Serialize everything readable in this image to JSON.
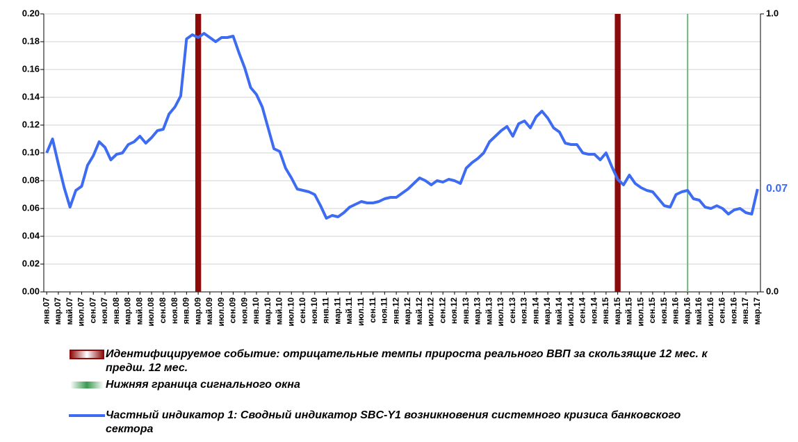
{
  "chart_data": {
    "type": "line",
    "categories": [
      "янв.07",
      null,
      "мар.07",
      null,
      "май.07",
      null,
      "июл.07",
      null,
      "сен.07",
      null,
      "ноя.07",
      null,
      "янв.08",
      null,
      "мар.08",
      null,
      "май.08",
      null,
      "июл.08",
      null,
      "сен.08",
      null,
      "ноя.08",
      null,
      "янв.09",
      null,
      "мар.09",
      null,
      "май.09",
      null,
      "июл.09",
      null,
      "сен.09",
      null,
      "ноя.09",
      null,
      "янв.10",
      null,
      "мар.10",
      null,
      "май.10",
      null,
      "июл.10",
      null,
      "сен.10",
      null,
      "ноя.10",
      null,
      "янв.11",
      null,
      "мар.11",
      null,
      "май.11",
      null,
      "июл.11",
      null,
      "сен.11",
      null,
      "ноя.11",
      null,
      "янв.12",
      null,
      "мар.12",
      null,
      "май.12",
      null,
      "июл.12",
      null,
      "сен.12",
      null,
      "ноя.12",
      null,
      "янв.13",
      null,
      "мар.13",
      null,
      "май.13",
      null,
      "июл.13",
      null,
      "сен.13",
      null,
      "ноя.13",
      null,
      "янв.14",
      null,
      "мар.14",
      null,
      "май.14",
      null,
      "июл.14",
      null,
      "сен.14",
      null,
      "ноя.14",
      null,
      "янв.15",
      null,
      "мар.15",
      null,
      "май.15",
      null,
      "июл.15",
      null,
      "сен.15",
      null,
      "ноя.15",
      null,
      "янв.16",
      null,
      "мар.16",
      null,
      "май.16",
      null,
      "июл.16",
      null,
      "сен.16",
      null,
      "ноя.16",
      null,
      "янв.17",
      null,
      "мар.17"
    ],
    "ylim": [
      0,
      0.2
    ],
    "yticks": [
      {
        "value": 0,
        "label": "0.00"
      },
      0.02,
      0.04,
      0.06,
      0.08,
      {
        "value": 0.1,
        "label": "0.10"
      },
      0.12,
      0.14,
      0.16,
      0.18,
      {
        "value": 0.2,
        "label": "0.20"
      }
    ],
    "y2lim": [
      0,
      1
    ],
    "y2ticks": [
      {
        "value": 0,
        "label": "0.0"
      },
      {
        "value": 1,
        "label": "1.0"
      }
    ],
    "series": [
      {
        "name": "Идентифицируемое событие: отрицательные темпы прироста реального ВВП за скользящие 12 мес. к предш. 12 мес.",
        "type": "bar",
        "axis": "y2",
        "color": "#8b0a0a",
        "values": [
          null,
          null,
          null,
          null,
          null,
          null,
          null,
          null,
          null,
          null,
          null,
          null,
          null,
          null,
          null,
          null,
          null,
          null,
          null,
          null,
          null,
          null,
          null,
          null,
          null,
          null,
          1,
          null,
          null,
          null,
          null,
          null,
          null,
          null,
          null,
          null,
          null,
          null,
          null,
          null,
          null,
          null,
          null,
          null,
          null,
          null,
          null,
          null,
          null,
          null,
          null,
          null,
          null,
          null,
          null,
          null,
          null,
          null,
          null,
          null,
          null,
          null,
          null,
          null,
          null,
          null,
          null,
          null,
          null,
          null,
          null,
          null,
          null,
          null,
          null,
          null,
          null,
          null,
          null,
          null,
          null,
          null,
          null,
          null,
          null,
          null,
          null,
          null,
          null,
          null,
          null,
          null,
          null,
          null,
          null,
          null,
          null,
          null,
          1,
          null,
          null,
          null,
          null,
          null,
          null,
          null,
          null,
          null,
          null,
          null,
          null,
          null,
          null,
          null,
          null,
          null,
          null,
          null,
          null,
          null,
          null,
          null,
          null
        ]
      },
      {
        "name": "Нижняя граница сигнального окна",
        "type": "bar",
        "axis": "y2",
        "color": "#6db37a",
        "values": [
          null,
          null,
          null,
          null,
          null,
          null,
          null,
          null,
          null,
          null,
          null,
          null,
          null,
          null,
          null,
          null,
          null,
          null,
          null,
          null,
          null,
          null,
          null,
          null,
          null,
          null,
          null,
          null,
          null,
          null,
          null,
          null,
          null,
          null,
          null,
          null,
          null,
          null,
          null,
          null,
          null,
          null,
          null,
          null,
          null,
          null,
          null,
          null,
          null,
          null,
          null,
          null,
          null,
          null,
          null,
          null,
          null,
          null,
          null,
          null,
          null,
          null,
          null,
          null,
          null,
          null,
          null,
          null,
          null,
          null,
          null,
          null,
          null,
          null,
          null,
          null,
          null,
          null,
          null,
          null,
          null,
          null,
          null,
          null,
          null,
          null,
          null,
          null,
          null,
          null,
          null,
          null,
          null,
          null,
          null,
          null,
          null,
          null,
          null,
          null,
          null,
          null,
          null,
          null,
          null,
          null,
          null,
          null,
          null,
          null,
          1,
          null,
          null,
          null,
          null,
          null,
          null,
          null,
          null,
          null,
          null,
          null,
          null
        ]
      },
      {
        "name": "Частный индикатор 1: Сводный индикатор SBC-Y1 возникновения системного кризиса банковского сектора",
        "type": "line",
        "color": "#3d6cf2",
        "values": [
          0.1,
          0.11,
          0.092,
          0.075,
          0.061,
          0.073,
          0.076,
          0.091,
          0.098,
          0.108,
          0.104,
          0.095,
          0.099,
          0.1,
          0.106,
          0.108,
          0.112,
          0.107,
          0.111,
          0.116,
          0.117,
          0.128,
          0.133,
          0.141,
          0.182,
          0.185,
          0.183,
          0.186,
          0.183,
          0.18,
          0.183,
          0.183,
          0.184,
          0.172,
          0.161,
          0.147,
          0.142,
          0.133,
          0.118,
          0.103,
          0.101,
          0.089,
          0.082,
          0.074,
          0.073,
          0.072,
          0.07,
          0.062,
          0.053,
          0.055,
          0.054,
          0.057,
          0.061,
          0.063,
          0.065,
          0.064,
          0.064,
          0.065,
          0.067,
          0.068,
          0.068,
          0.071,
          0.074,
          0.078,
          0.082,
          0.08,
          0.077,
          0.08,
          0.079,
          0.081,
          0.08,
          0.078,
          0.089,
          0.093,
          0.096,
          0.1,
          0.108,
          0.112,
          0.116,
          0.119,
          0.112,
          0.121,
          0.123,
          0.118,
          0.126,
          0.13,
          0.125,
          0.118,
          0.115,
          0.107,
          0.106,
          0.106,
          0.1,
          0.099,
          0.099,
          0.095,
          0.1,
          0.09,
          0.081,
          0.077,
          0.084,
          0.078,
          0.075,
          0.073,
          0.072,
          0.067,
          0.062,
          0.061,
          0.07,
          0.072,
          0.073,
          0.067,
          0.066,
          0.061,
          0.06,
          0.062,
          0.06,
          0.056,
          0.059,
          0.06,
          0.057,
          0.056,
          0.074
        ],
        "value_labels": [
          null,
          null,
          null,
          null,
          null,
          null,
          null,
          null,
          null,
          null,
          null,
          null,
          null,
          null,
          null,
          null,
          null,
          null,
          null,
          null,
          null,
          null,
          null,
          null,
          null,
          null,
          null,
          null,
          null,
          null,
          null,
          null,
          null,
          null,
          null,
          null,
          null,
          null,
          null,
          null,
          null,
          null,
          null,
          null,
          null,
          null,
          null,
          null,
          null,
          null,
          null,
          null,
          null,
          null,
          null,
          null,
          null,
          null,
          null,
          null,
          null,
          null,
          null,
          null,
          null,
          null,
          null,
          null,
          null,
          null,
          null,
          null,
          null,
          null,
          null,
          null,
          null,
          null,
          null,
          null,
          null,
          null,
          null,
          null,
          null,
          null,
          null,
          null,
          null,
          null,
          null,
          null,
          null,
          null,
          null,
          null,
          null,
          null,
          null,
          null,
          null,
          null,
          null,
          null,
          null,
          null,
          null,
          null,
          null,
          null,
          null,
          null,
          null,
          null,
          null,
          null,
          null,
          null,
          null,
          null,
          null,
          null,
          "0.07"
        ]
      }
    ]
  }
}
